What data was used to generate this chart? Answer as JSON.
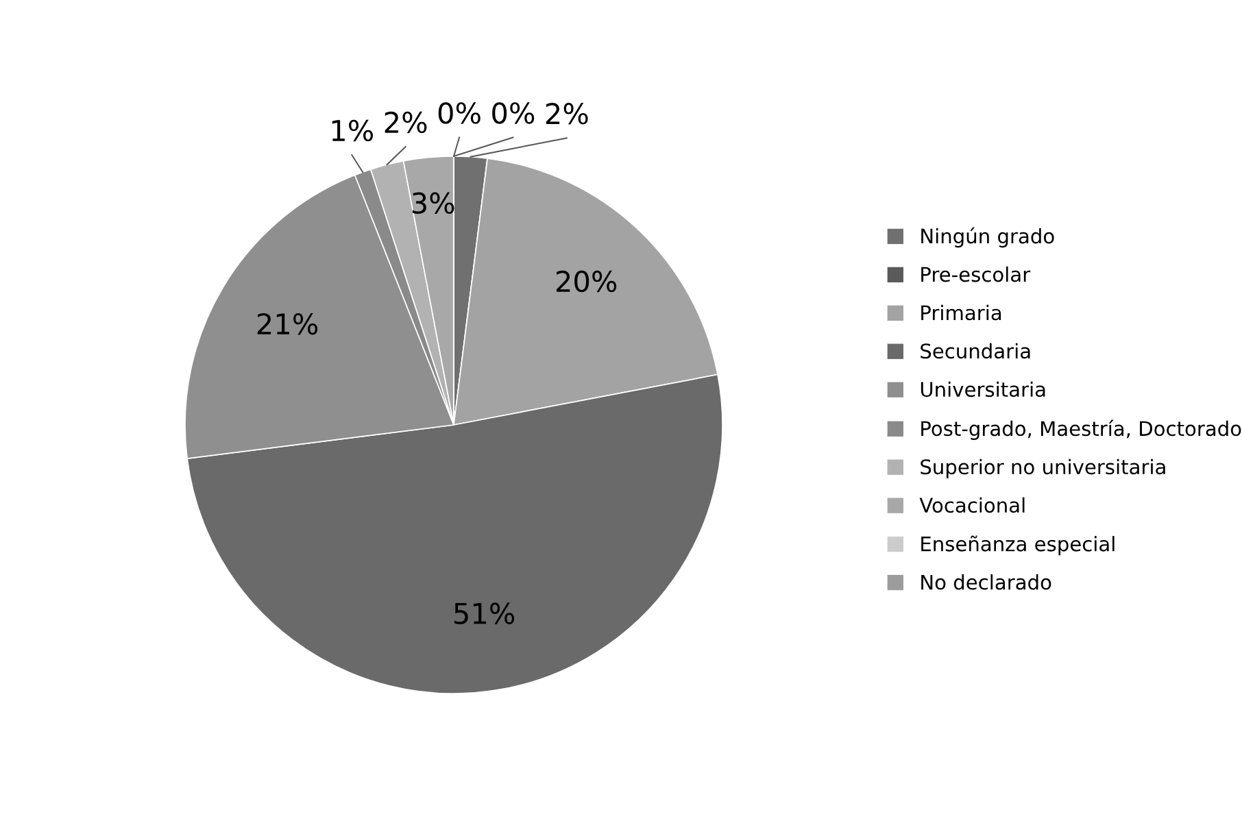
{
  "chart_data": {
    "type": "pie",
    "categories": [
      "Ningún grado",
      "Pre-escolar",
      "Primaria",
      "Secundaria",
      "Universitaria",
      "Post-grado, Maestría, Doctorado",
      "Superior no universitaria",
      "Vocacional",
      "Enseñanza especial",
      "No declarado"
    ],
    "values": [
      2,
      0,
      20,
      51,
      21,
      1,
      2,
      3,
      0,
      0
    ],
    "value_labels": [
      "2%",
      null,
      "20%",
      "51%",
      "21%",
      "1%",
      "2%",
      "3%",
      "0%",
      "0%"
    ],
    "colors": [
      "#707070",
      "#5a5a5a",
      "#a3a3a3",
      "#6a6a6a",
      "#8f8f8f",
      "#8a8a8a",
      "#b2b2b2",
      "#a8a8a8",
      "#cccccc",
      "#9c9c9c"
    ],
    "legend": "right"
  }
}
